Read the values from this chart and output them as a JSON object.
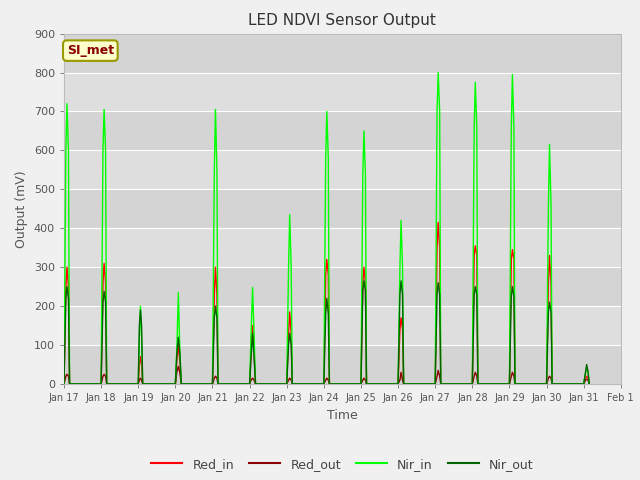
{
  "title": "LED NDVI Sensor Output",
  "xlabel": "Time",
  "ylabel": "Output (mV)",
  "ylim": [
    0,
    900
  ],
  "xlim": [
    0,
    15
  ],
  "fig_width": 6.4,
  "fig_height": 4.8,
  "dpi": 100,
  "colors": {
    "Red_in": "#ff0000",
    "Red_out": "#8b0000",
    "Nir_in": "#00ff00",
    "Nir_out": "#006400"
  },
  "xtick_labels": [
    "Jan 17",
    "Jan 18",
    "Jan 19",
    "Jan 20",
    "Jan 21",
    "Jan 22",
    "Jan 23",
    "Jan 24",
    "Jan 25",
    "Jan 26",
    "Jan 27",
    "Jan 28",
    "Jan 29",
    "Jan 30",
    "Jan 31",
    "Feb 1"
  ],
  "xtick_positions": [
    0,
    1,
    2,
    3,
    4,
    5,
    6,
    7,
    8,
    9,
    10,
    11,
    12,
    13,
    14,
    15
  ],
  "ytick_vals": [
    0,
    100,
    200,
    300,
    400,
    500,
    600,
    700,
    800,
    900
  ],
  "annotation_text": "SI_met",
  "annotation_bg": "#ffffcc",
  "annotation_border": "#999900",
  "annotation_text_color": "#8b0000",
  "band_colors": [
    "#d4d4d4",
    "#dedede"
  ],
  "grid_line_color": "#ffffff",
  "fig_bg": "#f0f0f0",
  "plot_bg": "#d8d8d8",
  "series": {
    "Red_in": [
      [
        0.0,
        0
      ],
      [
        0.05,
        250
      ],
      [
        0.08,
        300
      ],
      [
        0.12,
        250
      ],
      [
        0.15,
        0
      ],
      [
        1.0,
        0
      ],
      [
        1.05,
        260
      ],
      [
        1.08,
        310
      ],
      [
        1.12,
        260
      ],
      [
        1.15,
        0
      ],
      [
        2.0,
        0
      ],
      [
        2.03,
        50
      ],
      [
        2.06,
        70
      ],
      [
        2.09,
        50
      ],
      [
        2.12,
        0
      ],
      [
        3.0,
        0
      ],
      [
        3.04,
        60
      ],
      [
        3.08,
        100
      ],
      [
        3.12,
        60
      ],
      [
        3.16,
        0
      ],
      [
        4.0,
        0
      ],
      [
        4.05,
        230
      ],
      [
        4.08,
        300
      ],
      [
        4.12,
        230
      ],
      [
        4.15,
        0
      ],
      [
        5.0,
        0
      ],
      [
        5.04,
        80
      ],
      [
        5.08,
        150
      ],
      [
        5.12,
        80
      ],
      [
        5.16,
        0
      ],
      [
        6.0,
        0
      ],
      [
        6.05,
        130
      ],
      [
        6.08,
        185
      ],
      [
        6.12,
        130
      ],
      [
        6.15,
        0
      ],
      [
        7.0,
        0
      ],
      [
        7.05,
        280
      ],
      [
        7.08,
        320
      ],
      [
        7.12,
        280
      ],
      [
        7.15,
        0
      ],
      [
        8.0,
        0
      ],
      [
        8.05,
        260
      ],
      [
        8.08,
        300
      ],
      [
        8.12,
        260
      ],
      [
        8.15,
        0
      ],
      [
        9.0,
        0
      ],
      [
        9.05,
        140
      ],
      [
        9.08,
        170
      ],
      [
        9.12,
        140
      ],
      [
        9.15,
        0
      ],
      [
        10.0,
        0
      ],
      [
        10.05,
        350
      ],
      [
        10.08,
        415
      ],
      [
        10.12,
        350
      ],
      [
        10.15,
        0
      ],
      [
        11.0,
        0
      ],
      [
        11.05,
        330
      ],
      [
        11.08,
        355
      ],
      [
        11.12,
        330
      ],
      [
        11.15,
        0
      ],
      [
        12.0,
        0
      ],
      [
        12.05,
        320
      ],
      [
        12.08,
        345
      ],
      [
        12.12,
        320
      ],
      [
        12.15,
        0
      ],
      [
        13.0,
        0
      ],
      [
        13.05,
        260
      ],
      [
        13.08,
        330
      ],
      [
        13.12,
        260
      ],
      [
        13.15,
        0
      ],
      [
        14.0,
        0
      ],
      [
        14.05,
        15
      ],
      [
        14.08,
        20
      ],
      [
        14.12,
        15
      ],
      [
        14.15,
        0
      ]
    ],
    "Red_out": [
      [
        0.0,
        0
      ],
      [
        0.05,
        20
      ],
      [
        0.08,
        25
      ],
      [
        0.12,
        20
      ],
      [
        0.15,
        0
      ],
      [
        1.0,
        0
      ],
      [
        1.05,
        20
      ],
      [
        1.08,
        25
      ],
      [
        1.12,
        20
      ],
      [
        1.15,
        0
      ],
      [
        2.0,
        0
      ],
      [
        2.03,
        10
      ],
      [
        2.06,
        15
      ],
      [
        2.09,
        10
      ],
      [
        2.12,
        0
      ],
      [
        3.0,
        0
      ],
      [
        3.04,
        30
      ],
      [
        3.08,
        45
      ],
      [
        3.12,
        30
      ],
      [
        3.16,
        0
      ],
      [
        4.0,
        0
      ],
      [
        4.05,
        15
      ],
      [
        4.08,
        20
      ],
      [
        4.12,
        15
      ],
      [
        4.15,
        0
      ],
      [
        5.0,
        0
      ],
      [
        5.04,
        10
      ],
      [
        5.08,
        15
      ],
      [
        5.12,
        10
      ],
      [
        5.16,
        0
      ],
      [
        6.0,
        0
      ],
      [
        6.05,
        10
      ],
      [
        6.08,
        15
      ],
      [
        6.12,
        10
      ],
      [
        6.15,
        0
      ],
      [
        7.0,
        0
      ],
      [
        7.05,
        10
      ],
      [
        7.08,
        15
      ],
      [
        7.12,
        10
      ],
      [
        7.15,
        0
      ],
      [
        8.0,
        0
      ],
      [
        8.05,
        10
      ],
      [
        8.08,
        15
      ],
      [
        8.12,
        10
      ],
      [
        8.15,
        0
      ],
      [
        9.0,
        0
      ],
      [
        9.05,
        10
      ],
      [
        9.08,
        30
      ],
      [
        9.12,
        10
      ],
      [
        9.15,
        0
      ],
      [
        10.0,
        0
      ],
      [
        10.05,
        20
      ],
      [
        10.08,
        35
      ],
      [
        10.12,
        20
      ],
      [
        10.15,
        0
      ],
      [
        11.0,
        0
      ],
      [
        11.05,
        20
      ],
      [
        11.08,
        30
      ],
      [
        11.12,
        20
      ],
      [
        11.15,
        0
      ],
      [
        12.0,
        0
      ],
      [
        12.05,
        20
      ],
      [
        12.08,
        30
      ],
      [
        12.12,
        20
      ],
      [
        12.15,
        0
      ],
      [
        13.0,
        0
      ],
      [
        13.05,
        15
      ],
      [
        13.08,
        20
      ],
      [
        13.12,
        15
      ],
      [
        13.15,
        0
      ],
      [
        14.0,
        0
      ],
      [
        14.05,
        10
      ],
      [
        14.08,
        12
      ],
      [
        14.12,
        10
      ],
      [
        14.15,
        0
      ]
    ],
    "Nir_in": [
      [
        0.0,
        0
      ],
      [
        0.05,
        600
      ],
      [
        0.08,
        720
      ],
      [
        0.12,
        600
      ],
      [
        0.15,
        0
      ],
      [
        1.0,
        0
      ],
      [
        1.05,
        600
      ],
      [
        1.08,
        705
      ],
      [
        1.12,
        600
      ],
      [
        1.15,
        0
      ],
      [
        2.0,
        0
      ],
      [
        2.03,
        120
      ],
      [
        2.06,
        200
      ],
      [
        2.09,
        120
      ],
      [
        2.12,
        0
      ],
      [
        3.0,
        0
      ],
      [
        3.04,
        90
      ],
      [
        3.08,
        235
      ],
      [
        3.12,
        90
      ],
      [
        3.16,
        0
      ],
      [
        4.0,
        0
      ],
      [
        4.05,
        550
      ],
      [
        4.08,
        705
      ],
      [
        4.12,
        550
      ],
      [
        4.15,
        0
      ],
      [
        5.0,
        0
      ],
      [
        5.04,
        130
      ],
      [
        5.08,
        248
      ],
      [
        5.12,
        130
      ],
      [
        5.16,
        0
      ],
      [
        6.0,
        0
      ],
      [
        6.05,
        300
      ],
      [
        6.08,
        435
      ],
      [
        6.12,
        300
      ],
      [
        6.15,
        0
      ],
      [
        7.0,
        0
      ],
      [
        7.05,
        580
      ],
      [
        7.08,
        700
      ],
      [
        7.12,
        580
      ],
      [
        7.15,
        0
      ],
      [
        8.0,
        0
      ],
      [
        8.05,
        540
      ],
      [
        8.08,
        650
      ],
      [
        8.12,
        540
      ],
      [
        8.15,
        0
      ],
      [
        9.0,
        0
      ],
      [
        9.05,
        300
      ],
      [
        9.08,
        420
      ],
      [
        9.12,
        300
      ],
      [
        9.15,
        0
      ],
      [
        10.0,
        0
      ],
      [
        10.05,
        700
      ],
      [
        10.08,
        800
      ],
      [
        10.12,
        700
      ],
      [
        10.15,
        0
      ],
      [
        11.0,
        0
      ],
      [
        11.05,
        660
      ],
      [
        11.08,
        775
      ],
      [
        11.12,
        660
      ],
      [
        11.15,
        0
      ],
      [
        12.0,
        0
      ],
      [
        12.05,
        660
      ],
      [
        12.08,
        795
      ],
      [
        12.12,
        660
      ],
      [
        12.15,
        0
      ],
      [
        13.0,
        0
      ],
      [
        13.05,
        460
      ],
      [
        13.08,
        615
      ],
      [
        13.12,
        460
      ],
      [
        13.15,
        0
      ],
      [
        14.0,
        0
      ],
      [
        14.05,
        30
      ],
      [
        14.08,
        40
      ],
      [
        14.12,
        30
      ],
      [
        14.15,
        0
      ]
    ],
    "Nir_out": [
      [
        0.0,
        0
      ],
      [
        0.05,
        220
      ],
      [
        0.08,
        250
      ],
      [
        0.12,
        220
      ],
      [
        0.15,
        0
      ],
      [
        1.0,
        0
      ],
      [
        1.05,
        210
      ],
      [
        1.08,
        238
      ],
      [
        1.12,
        210
      ],
      [
        1.15,
        0
      ],
      [
        2.0,
        0
      ],
      [
        2.03,
        150
      ],
      [
        2.06,
        190
      ],
      [
        2.09,
        150
      ],
      [
        2.12,
        0
      ],
      [
        3.0,
        0
      ],
      [
        3.04,
        80
      ],
      [
        3.08,
        120
      ],
      [
        3.12,
        80
      ],
      [
        3.16,
        0
      ],
      [
        4.0,
        0
      ],
      [
        4.05,
        170
      ],
      [
        4.08,
        200
      ],
      [
        4.12,
        170
      ],
      [
        4.15,
        0
      ],
      [
        5.0,
        0
      ],
      [
        5.04,
        70
      ],
      [
        5.08,
        130
      ],
      [
        5.12,
        70
      ],
      [
        5.16,
        0
      ],
      [
        6.0,
        0
      ],
      [
        6.05,
        100
      ],
      [
        6.08,
        130
      ],
      [
        6.12,
        100
      ],
      [
        6.15,
        0
      ],
      [
        7.0,
        0
      ],
      [
        7.05,
        180
      ],
      [
        7.08,
        220
      ],
      [
        7.12,
        180
      ],
      [
        7.15,
        0
      ],
      [
        8.0,
        0
      ],
      [
        8.05,
        240
      ],
      [
        8.08,
        265
      ],
      [
        8.12,
        240
      ],
      [
        8.15,
        0
      ],
      [
        9.0,
        0
      ],
      [
        9.05,
        230
      ],
      [
        9.08,
        265
      ],
      [
        9.12,
        230
      ],
      [
        9.15,
        0
      ],
      [
        10.0,
        0
      ],
      [
        10.05,
        230
      ],
      [
        10.08,
        260
      ],
      [
        10.12,
        230
      ],
      [
        10.15,
        0
      ],
      [
        11.0,
        0
      ],
      [
        11.05,
        230
      ],
      [
        11.08,
        250
      ],
      [
        11.12,
        230
      ],
      [
        11.15,
        0
      ],
      [
        12.0,
        0
      ],
      [
        12.05,
        225
      ],
      [
        12.08,
        250
      ],
      [
        12.12,
        225
      ],
      [
        12.15,
        0
      ],
      [
        13.0,
        0
      ],
      [
        13.05,
        185
      ],
      [
        13.08,
        210
      ],
      [
        13.12,
        185
      ],
      [
        13.15,
        0
      ],
      [
        14.0,
        0
      ],
      [
        14.05,
        30
      ],
      [
        14.08,
        50
      ],
      [
        14.12,
        30
      ],
      [
        14.15,
        0
      ]
    ]
  }
}
